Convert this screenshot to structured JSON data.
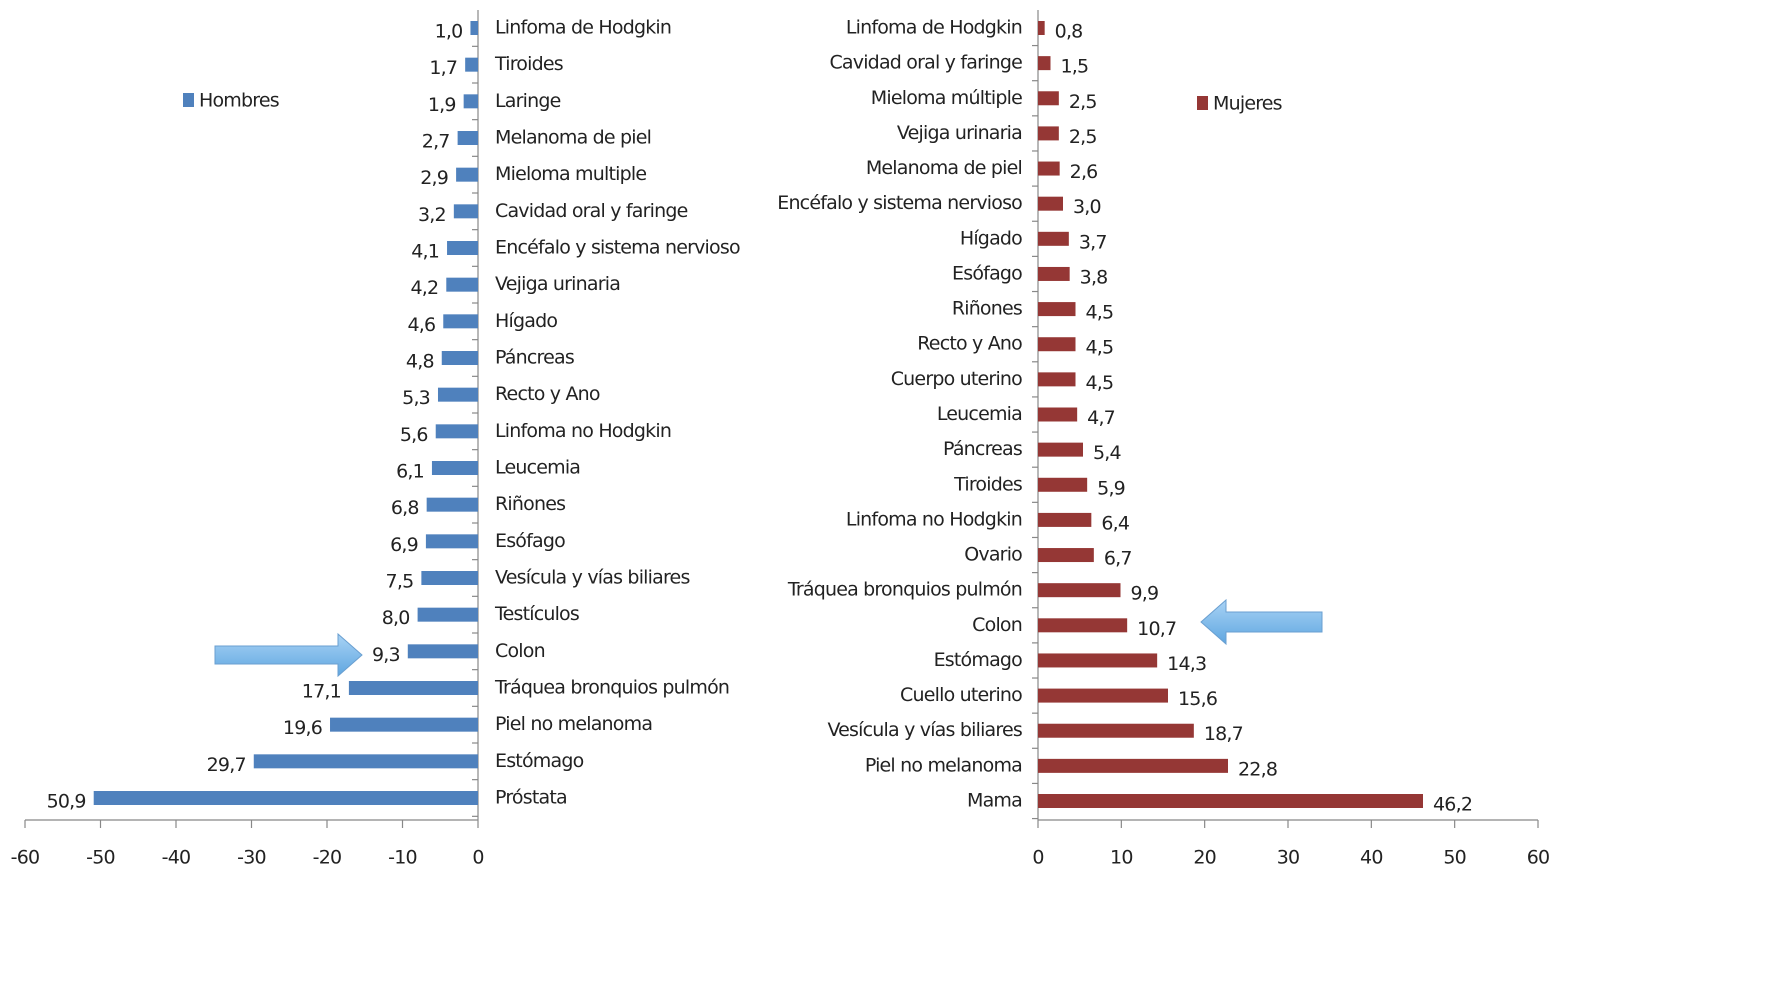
{
  "chart_data": [
    {
      "type": "bar",
      "orientation": "horizontal",
      "categories": [
        "Linfoma de Hodgkin",
        "Tiroides",
        "Laringe",
        "Melanoma de piel",
        "Mieloma multiple",
        "Cavidad oral y faringe",
        "Encéfalo y sistema nervioso",
        "Vejiga urinaria",
        "Hígado",
        "Páncreas",
        "Recto y Ano",
        "Linfoma no Hodgkin",
        "Leucemia",
        "Riñones",
        "Esófago",
        "Vesícula y vías biliares",
        "Testículos",
        "Colon",
        "Tráquea bronquios pulmón",
        "Piel no melanoma",
        "Estómago",
        "Próstata"
      ],
      "series": [
        {
          "name": "Hombres",
          "color": "#4f81bd",
          "values": [
            -1.0,
            -1.7,
            -1.9,
            -2.7,
            -2.9,
            -3.2,
            -4.1,
            -4.2,
            -4.6,
            -4.8,
            -5.3,
            -5.6,
            -6.1,
            -6.8,
            -6.9,
            -7.5,
            -8.0,
            -9.3,
            -17.1,
            -19.6,
            -29.7,
            -50.9
          ],
          "value_labels": [
            "1,0",
            "1,7",
            "1,9",
            "2,7",
            "2,9",
            "3,2",
            "4,1",
            "4,2",
            "4,6",
            "4,8",
            "5,3",
            "5,6",
            "6,1",
            "6,8",
            "6,9",
            "7,5",
            "8,0",
            "9,3",
            "17,1",
            "19,6",
            "29,7",
            "50,9"
          ]
        }
      ],
      "xlim": [
        -60,
        0
      ],
      "xticks": [
        -60,
        -50,
        -40,
        -30,
        -20,
        -10,
        0
      ],
      "legend": "upper left"
    },
    {
      "type": "bar",
      "orientation": "horizontal",
      "categories": [
        "Linfoma de Hodgkin",
        "Cavidad oral y faringe",
        "Mieloma múltiple",
        "Vejiga urinaria",
        "Melanoma de piel",
        "Encéfalo y sistema nervioso",
        "Hígado",
        "Esófago",
        "Riñones",
        "Recto y Ano",
        "Cuerpo uterino",
        "Leucemia",
        "Páncreas",
        "Tiroides",
        "Linfoma no Hodgkin",
        "Ovario",
        "Tráquea bronquios pulmón",
        "Colon",
        "Estómago",
        "Cuello uterino",
        "Vesícula y vías biliares",
        "Piel no melanoma",
        "Mama"
      ],
      "series": [
        {
          "name": "Mujeres",
          "color": "#953735",
          "values": [
            0.8,
            1.5,
            2.5,
            2.5,
            2.6,
            3.0,
            3.7,
            3.8,
            4.5,
            4.5,
            4.5,
            4.7,
            5.4,
            5.9,
            6.4,
            6.7,
            9.9,
            10.7,
            14.3,
            15.6,
            18.7,
            22.8,
            46.2
          ],
          "value_labels": [
            "0,8",
            "1,5",
            "2,5",
            "2,5",
            "2,6",
            "3,0",
            "3,7",
            "3,8",
            "4,5",
            "4,5",
            "4,5",
            "4,7",
            "5,4",
            "5,9",
            "6,4",
            "6,7",
            "9,9",
            "10,7",
            "14,3",
            "15,6",
            "18,7",
            "22,8",
            "46,2"
          ]
        }
      ],
      "xlim": [
        0,
        60
      ],
      "xticks": [
        0,
        10,
        20,
        30,
        40,
        50,
        60
      ],
      "legend": "upper right"
    }
  ]
}
